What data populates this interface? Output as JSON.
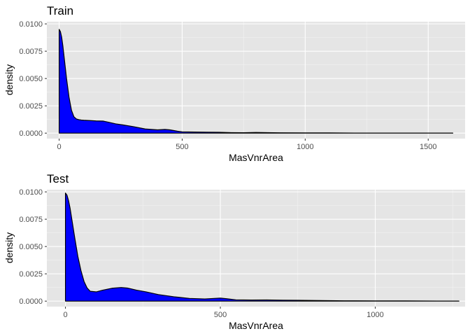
{
  "chart_data": [
    {
      "type": "area",
      "title": "Train",
      "xlabel": "MasVnrArea",
      "ylabel": "density",
      "xlim": [
        -50,
        1650
      ],
      "ylim": [
        -0.0005,
        0.0102
      ],
      "x_ticks": [
        0,
        500,
        1000,
        1500
      ],
      "x_tick_labels": [
        "0",
        "500",
        "1000",
        "1500"
      ],
      "y_ticks": [
        0,
        0.0025,
        0.005,
        0.0075,
        0.01
      ],
      "y_tick_labels": [
        "0.0000",
        "0.0025",
        "0.0050",
        "0.0075",
        "0.0100"
      ],
      "grid": true,
      "fill_color": "#0000ff",
      "line_color": "#000000",
      "series": [
        {
          "x": [
            0,
            5,
            10,
            15,
            20,
            30,
            40,
            50,
            60,
            70,
            80,
            90,
            100,
            120,
            150,
            180,
            200,
            230,
            260,
            300,
            350,
            400,
            430,
            450,
            480,
            500,
            550,
            600,
            650,
            700,
            750,
            800,
            900,
            1000,
            1100,
            1200,
            1300,
            1400,
            1500,
            1600
          ],
          "y": [
            0.0095,
            0.0093,
            0.0088,
            0.008,
            0.007,
            0.005,
            0.0033,
            0.0021,
            0.0015,
            0.0013,
            0.00123,
            0.0012,
            0.00118,
            0.00116,
            0.00112,
            0.0011,
            0.001,
            0.00085,
            0.00075,
            0.0006,
            0.00038,
            0.0003,
            0.00034,
            0.0003,
            0.00018,
            0.00012,
            0.0001,
            9e-05,
            8e-05,
            5e-05,
            4e-05,
            6e-05,
            3e-05,
            2e-05,
            2e-05,
            1e-05,
            1e-05,
            1e-05,
            5e-06,
            3e-06
          ]
        }
      ]
    },
    {
      "type": "area",
      "title": "Test",
      "xlabel": "MasVnrArea",
      "ylabel": "density",
      "xlim": [
        -60,
        1290
      ],
      "ylim": [
        -0.0005,
        0.0102
      ],
      "x_ticks": [
        0,
        500,
        1000
      ],
      "x_tick_labels": [
        "0",
        "500",
        "1000"
      ],
      "y_ticks": [
        0,
        0.0025,
        0.005,
        0.0075,
        0.01
      ],
      "y_tick_labels": [
        "0.0000",
        "0.0025",
        "0.0050",
        "0.0075",
        "0.0100"
      ],
      "grid": true,
      "fill_color": "#0000ff",
      "line_color": "#000000",
      "series": [
        {
          "x": [
            0,
            5,
            10,
            15,
            20,
            30,
            40,
            50,
            60,
            70,
            80,
            100,
            120,
            150,
            180,
            200,
            230,
            260,
            300,
            350,
            400,
            450,
            480,
            500,
            520,
            550,
            600,
            650,
            700,
            750,
            800,
            900,
            1000,
            1100,
            1200,
            1270
          ],
          "y": [
            0.0099,
            0.0097,
            0.0092,
            0.0085,
            0.0076,
            0.0058,
            0.0041,
            0.0028,
            0.0018,
            0.0012,
            0.0009,
            0.00085,
            0.001,
            0.00118,
            0.00125,
            0.0012,
            0.001,
            0.00085,
            0.0006,
            0.0004,
            0.00025,
            0.0002,
            0.00025,
            0.00028,
            0.00022,
            0.00012,
            0.0001,
            0.00011,
            9e-05,
            8e-05,
            6e-05,
            3e-05,
            2e-05,
            2e-05,
            1e-05,
            1e-05
          ]
        }
      ]
    }
  ]
}
